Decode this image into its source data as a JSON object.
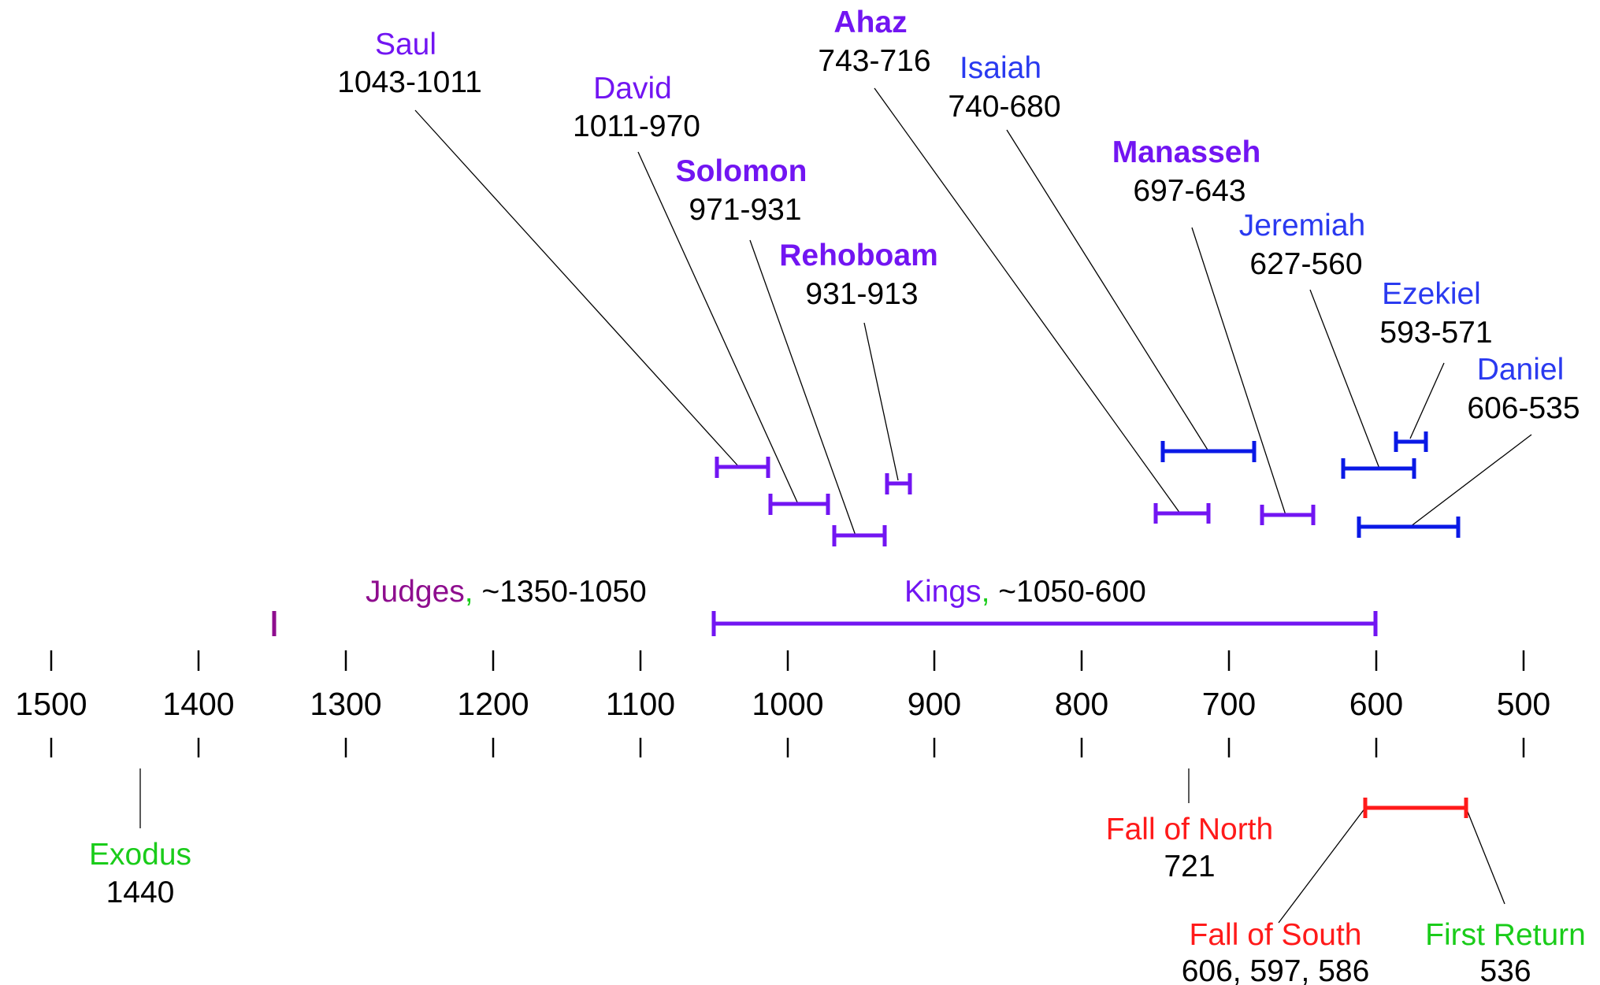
{
  "colors": {
    "king": "#7215f2",
    "prophet": "#2a3af0",
    "judges": "#8e0d8e",
    "event_red": "#ff1a1a",
    "event_green": "#1acc1a",
    "blue_bar": "#0a19e6"
  },
  "axis": {
    "ticks": [
      "1500",
      "1400",
      "1300",
      "1200",
      "1100",
      "1000",
      "900",
      "800",
      "700",
      "600",
      "500"
    ]
  },
  "eras": {
    "judges": {
      "name": "Judges",
      "sep": ",",
      "range": " ~1350-1050"
    },
    "kings": {
      "name": "Kings",
      "sep": ",",
      "range": " ~1050-600"
    }
  },
  "rulers": [
    {
      "name": "Saul",
      "dates": "1043-1011"
    },
    {
      "name": "David",
      "dates": "1011-970"
    },
    {
      "name": "Solomon",
      "dates": "971-931"
    },
    {
      "name": "Rehoboam",
      "dates": "931-913"
    },
    {
      "name": "Ahaz",
      "dates": "743-716"
    },
    {
      "name": "Manasseh",
      "dates": "697-643"
    }
  ],
  "prophets": [
    {
      "name": "Isaiah",
      "dates": "740-680"
    },
    {
      "name": "Jeremiah",
      "dates": "627-560"
    },
    {
      "name": "Ezekiel",
      "dates": "593-571"
    },
    {
      "name": "Daniel",
      "dates": "606-535"
    }
  ],
  "events": {
    "exodus": {
      "name": "Exodus",
      "date": "1440"
    },
    "fall_north": {
      "name": "Fall of North",
      "date": "721"
    },
    "fall_south": {
      "name": "Fall of South",
      "date": "606, 597, 586"
    },
    "first_return": {
      "name": "First Return",
      "date": "536"
    }
  }
}
